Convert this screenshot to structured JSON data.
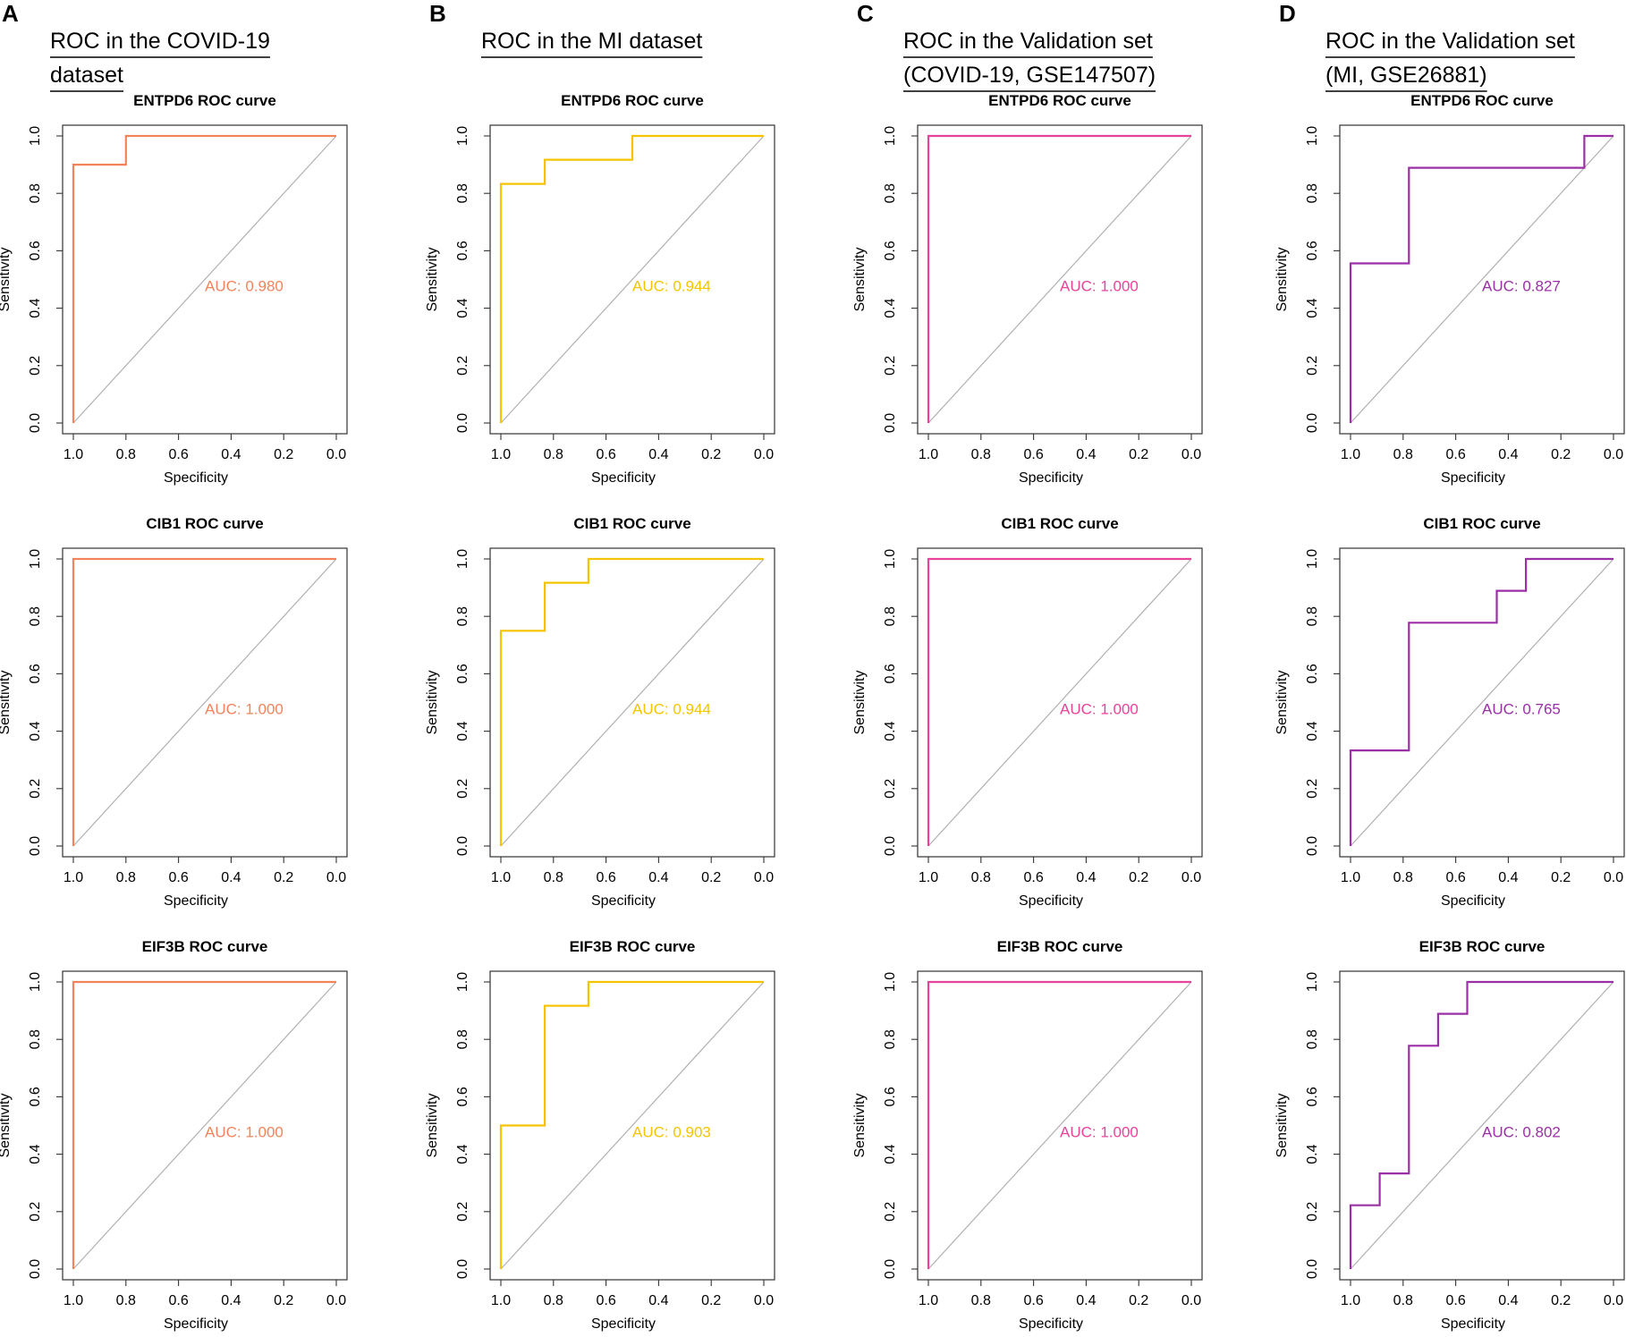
{
  "panels": [
    {
      "letter": "A",
      "heading": [
        "ROC in the COVID-19",
        "dataset"
      ],
      "color": "#f4835a",
      "charts": [
        {
          "title": "ENTPD6 ROC curve",
          "auc": "AUC: 0.980",
          "points": [
            [
              1.0,
              0.0
            ],
            [
              1.0,
              0.9
            ],
            [
              0.8,
              0.9
            ],
            [
              0.8,
              1.0
            ],
            [
              0.0,
              1.0
            ]
          ]
        },
        {
          "title": "CIB1 ROC curve",
          "auc": "AUC: 1.000",
          "points": [
            [
              1.0,
              0.0
            ],
            [
              1.0,
              1.0
            ],
            [
              0.0,
              1.0
            ]
          ]
        },
        {
          "title": "EIF3B ROC curve",
          "auc": "AUC: 1.000",
          "points": [
            [
              1.0,
              0.0
            ],
            [
              1.0,
              1.0
            ],
            [
              0.0,
              1.0
            ]
          ]
        }
      ]
    },
    {
      "letter": "B",
      "heading": [
        "ROC in the MI dataset"
      ],
      "color": "#f5c400",
      "charts": [
        {
          "title": "ENTPD6 ROC curve",
          "auc": "AUC: 0.944",
          "points": [
            [
              1.0,
              0.0
            ],
            [
              1.0,
              0.833
            ],
            [
              0.833,
              0.833
            ],
            [
              0.833,
              0.917
            ],
            [
              0.5,
              0.917
            ],
            [
              0.5,
              1.0
            ],
            [
              0.0,
              1.0
            ]
          ]
        },
        {
          "title": "CIB1 ROC curve",
          "auc": "AUC: 0.944",
          "points": [
            [
              1.0,
              0.0
            ],
            [
              1.0,
              0.75
            ],
            [
              0.833,
              0.75
            ],
            [
              0.833,
              0.917
            ],
            [
              0.667,
              0.917
            ],
            [
              0.667,
              1.0
            ],
            [
              0.0,
              1.0
            ]
          ]
        },
        {
          "title": "EIF3B ROC curve",
          "auc": "AUC: 0.903",
          "points": [
            [
              1.0,
              0.0
            ],
            [
              1.0,
              0.5
            ],
            [
              0.833,
              0.5
            ],
            [
              0.833,
              0.917
            ],
            [
              0.667,
              0.917
            ],
            [
              0.667,
              1.0
            ],
            [
              0.0,
              1.0
            ]
          ]
        }
      ]
    },
    {
      "letter": "C",
      "heading": [
        "ROC in the Validation set",
        "(COVID-19, GSE147507)"
      ],
      "color": "#e8439a",
      "charts": [
        {
          "title": "ENTPD6 ROC curve",
          "auc": "AUC: 1.000",
          "points": [
            [
              1.0,
              0.0
            ],
            [
              1.0,
              1.0
            ],
            [
              0.0,
              1.0
            ]
          ]
        },
        {
          "title": "CIB1 ROC curve",
          "auc": "AUC: 1.000",
          "points": [
            [
              1.0,
              0.0
            ],
            [
              1.0,
              1.0
            ],
            [
              0.0,
              1.0
            ]
          ]
        },
        {
          "title": "EIF3B ROC curve",
          "auc": "AUC: 1.000",
          "points": [
            [
              1.0,
              0.0
            ],
            [
              1.0,
              1.0
            ],
            [
              0.0,
              1.0
            ]
          ]
        }
      ]
    },
    {
      "letter": "D",
      "heading": [
        "ROC in the Validation set",
        "(MI, GSE26881)"
      ],
      "color": "#9b2fa6",
      "charts": [
        {
          "title": "ENTPD6 ROC curve",
          "auc": "AUC: 0.827",
          "points": [
            [
              1.0,
              0.0
            ],
            [
              1.0,
              0.556
            ],
            [
              0.778,
              0.556
            ],
            [
              0.778,
              0.889
            ],
            [
              0.111,
              0.889
            ],
            [
              0.111,
              1.0
            ],
            [
              0.0,
              1.0
            ]
          ]
        },
        {
          "title": "CIB1 ROC curve",
          "auc": "AUC: 0.765",
          "points": [
            [
              1.0,
              0.0
            ],
            [
              1.0,
              0.333
            ],
            [
              0.778,
              0.333
            ],
            [
              0.778,
              0.778
            ],
            [
              0.444,
              0.778
            ],
            [
              0.444,
              0.889
            ],
            [
              0.333,
              0.889
            ],
            [
              0.333,
              1.0
            ],
            [
              0.0,
              1.0
            ]
          ]
        },
        {
          "title": "EIF3B ROC curve",
          "auc": "AUC: 0.802",
          "points": [
            [
              1.0,
              0.0
            ],
            [
              1.0,
              0.222
            ],
            [
              0.889,
              0.222
            ],
            [
              0.889,
              0.333
            ],
            [
              0.778,
              0.333
            ],
            [
              0.778,
              0.778
            ],
            [
              0.667,
              0.778
            ],
            [
              0.667,
              0.889
            ],
            [
              0.556,
              0.889
            ],
            [
              0.556,
              1.0
            ],
            [
              0.0,
              1.0
            ]
          ]
        }
      ]
    }
  ],
  "chart_data": {
    "type": "line",
    "xlabel": "Specificity",
    "ylabel": "Sensitivity",
    "xlim": [
      1.0,
      0.0
    ],
    "ylim": [
      0.0,
      1.0
    ],
    "x_ticks": [
      "1.0",
      "0.8",
      "0.6",
      "0.4",
      "0.2",
      "0.0"
    ],
    "y_ticks": [
      "0.0",
      "0.2",
      "0.4",
      "0.6",
      "0.8",
      "1.0"
    ],
    "diagonal_color": "#b0b0b0",
    "series_note": "Each panel column contains three ROC curves (ENTPD6, CIB1, EIF3B); points are [specificity, sensitivity]."
  }
}
